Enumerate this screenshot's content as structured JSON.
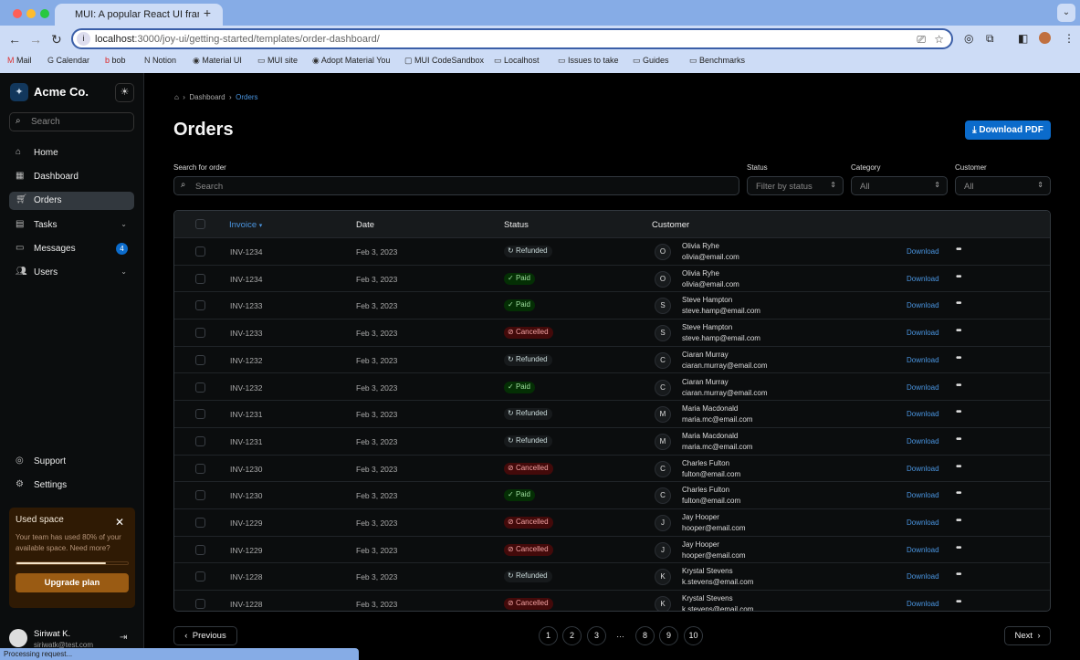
{
  "browser": {
    "tab_title": "MUI: A popular React UI fram",
    "url_host": "localhost",
    "url_path": ":3000/joy-ui/getting-started/templates/order-dashboard/",
    "status_text": "Processing request...",
    "bookmarks": [
      "Mail",
      "Calendar",
      "bob",
      "Notion",
      "Material UI",
      "MUI site",
      "Adopt Material You",
      "MUI CodeSandbox",
      "Localhost",
      "Issues to take",
      "Guides",
      "Benchmarks"
    ]
  },
  "sidebar": {
    "brand": "Acme Co.",
    "search_placeholder": "Search",
    "items": [
      {
        "label": "Home",
        "icon": "home-icon"
      },
      {
        "label": "Dashboard",
        "icon": "dashboard-icon"
      },
      {
        "label": "Orders",
        "icon": "cart-icon",
        "active": true
      },
      {
        "label": "Tasks",
        "icon": "clipboard-icon"
      },
      {
        "label": "Messages",
        "icon": "chat-icon",
        "badge": "4"
      },
      {
        "label": "Users",
        "icon": "users-icon"
      }
    ],
    "bottom": [
      {
        "label": "Support"
      },
      {
        "label": "Settings"
      }
    ],
    "card": {
      "title": "Used space",
      "text": "Your team has used 80% of your available space. Need more?",
      "progress": 80,
      "button": "Upgrade plan"
    },
    "user": {
      "name": "Siriwat K.",
      "email": "siriwatk@test.com"
    }
  },
  "breadcrumb": [
    "Dashboard",
    "Orders"
  ],
  "page": {
    "title": "Orders",
    "download_pdf": "Download PDF"
  },
  "filters": {
    "search_label": "Search for order",
    "search_placeholder": "Search",
    "status_label": "Status",
    "status_placeholder": "Filter by status",
    "category_label": "Category",
    "category_value": "All",
    "customer_label": "Customer",
    "customer_value": "All"
  },
  "table": {
    "headers": {
      "invoice": "Invoice",
      "date": "Date",
      "status": "Status",
      "customer": "Customer"
    },
    "action": "Download",
    "rows": [
      [
        "INV-1234",
        "Feb 3, 2023",
        "Refunded",
        "O",
        "Olivia Ryhe",
        "olivia@email.com"
      ],
      [
        "INV-1234",
        "Feb 3, 2023",
        "Paid",
        "O",
        "Olivia Ryhe",
        "olivia@email.com"
      ],
      [
        "INV-1233",
        "Feb 3, 2023",
        "Paid",
        "S",
        "Steve Hampton",
        "steve.hamp@email.com"
      ],
      [
        "INV-1233",
        "Feb 3, 2023",
        "Cancelled",
        "S",
        "Steve Hampton",
        "steve.hamp@email.com"
      ],
      [
        "INV-1232",
        "Feb 3, 2023",
        "Refunded",
        "C",
        "Ciaran Murray",
        "ciaran.murray@email.com"
      ],
      [
        "INV-1232",
        "Feb 3, 2023",
        "Paid",
        "C",
        "Ciaran Murray",
        "ciaran.murray@email.com"
      ],
      [
        "INV-1231",
        "Feb 3, 2023",
        "Refunded",
        "M",
        "Maria Macdonald",
        "maria.mc@email.com"
      ],
      [
        "INV-1231",
        "Feb 3, 2023",
        "Refunded",
        "M",
        "Maria Macdonald",
        "maria.mc@email.com"
      ],
      [
        "INV-1230",
        "Feb 3, 2023",
        "Cancelled",
        "C",
        "Charles Fulton",
        "fulton@email.com"
      ],
      [
        "INV-1230",
        "Feb 3, 2023",
        "Paid",
        "C",
        "Charles Fulton",
        "fulton@email.com"
      ],
      [
        "INV-1229",
        "Feb 3, 2023",
        "Cancelled",
        "J",
        "Jay Hooper",
        "hooper@email.com"
      ],
      [
        "INV-1229",
        "Feb 3, 2023",
        "Cancelled",
        "J",
        "Jay Hooper",
        "hooper@email.com"
      ],
      [
        "INV-1228",
        "Feb 3, 2023",
        "Refunded",
        "K",
        "Krystal Stevens",
        "k.stevens@email.com"
      ],
      [
        "INV-1228",
        "Feb 3, 2023",
        "Cancelled",
        "K",
        "Krystal Stevens",
        "k.stevens@email.com"
      ]
    ]
  },
  "status_styles": {
    "Refunded": {
      "bg": "#171a1c",
      "fg": "#cdd",
      "icon": "↻"
    },
    "Paid": {
      "bg": "#042f04",
      "fg": "#9fe09f",
      "icon": "✓"
    },
    "Cancelled": {
      "bg": "#430a0a",
      "fg": "#f3a3a3",
      "icon": "⊘"
    }
  },
  "pagination": {
    "previous": "Previous",
    "next": "Next",
    "pages": [
      "1",
      "2",
      "3",
      "…",
      "8",
      "9",
      "10"
    ]
  }
}
